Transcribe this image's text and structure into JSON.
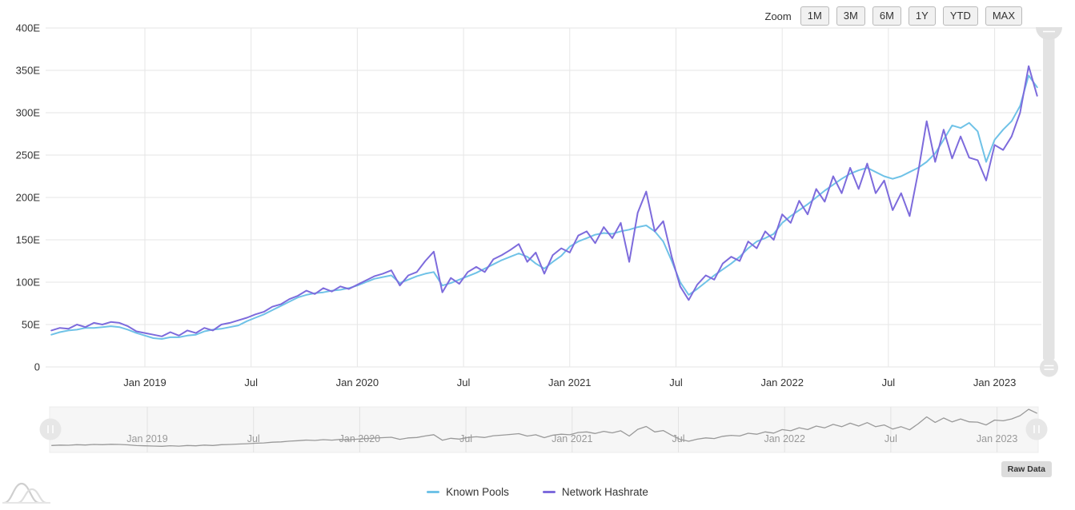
{
  "toolbar": {
    "zoom_label": "Zoom",
    "buttons": [
      "1M",
      "3M",
      "6M",
      "1Y",
      "YTD",
      "MAX"
    ]
  },
  "raw_data_label": "Raw Data",
  "colors": {
    "known_pools": "#6FC2E7",
    "network_hashrate": "#7D6BDC",
    "gridline": "#e6e6e6",
    "axis_label": "#333333",
    "navigator_label": "#999999",
    "navigator_line": "#999999",
    "navigator_bg": "#f6f6f6",
    "scrollbar": "#e3e3e3"
  },
  "chart_data": {
    "type": "line",
    "title": "",
    "xlabel": "",
    "ylabel": "",
    "ylim": [
      0,
      400
    ],
    "xlim": [
      2018.54,
      2023.22
    ],
    "grid": true,
    "legend_position": "bottom",
    "yticks": [
      {
        "v": 400,
        "label": "400E"
      },
      {
        "v": 350,
        "label": "350E"
      },
      {
        "v": 300,
        "label": "300E"
      },
      {
        "v": 250,
        "label": "250E"
      },
      {
        "v": 200,
        "label": "200E"
      },
      {
        "v": 150,
        "label": "150E"
      },
      {
        "v": 100,
        "label": "100E"
      },
      {
        "v": 50,
        "label": "50E"
      },
      {
        "v": 0,
        "label": "0"
      }
    ],
    "xticks": [
      {
        "t": 2019.0,
        "label": "Jan 2019"
      },
      {
        "t": 2019.5,
        "label": "Jul"
      },
      {
        "t": 2020.0,
        "label": "Jan 2020"
      },
      {
        "t": 2020.5,
        "label": "Jul"
      },
      {
        "t": 2021.0,
        "label": "Jan 2021"
      },
      {
        "t": 2021.5,
        "label": "Jul"
      },
      {
        "t": 2022.0,
        "label": "Jan 2022"
      },
      {
        "t": 2022.5,
        "label": "Jul"
      },
      {
        "t": 2023.0,
        "label": "Jan 2023"
      }
    ],
    "x_unit": "decimal_year",
    "y_unit": "EH/s",
    "x": [
      2018.56,
      2018.6,
      2018.64,
      2018.68,
      2018.72,
      2018.76,
      2018.8,
      2018.84,
      2018.88,
      2018.92,
      2018.96,
      2019.0,
      2019.04,
      2019.08,
      2019.12,
      2019.16,
      2019.2,
      2019.24,
      2019.28,
      2019.32,
      2019.36,
      2019.4,
      2019.44,
      2019.48,
      2019.52,
      2019.56,
      2019.6,
      2019.64,
      2019.68,
      2019.72,
      2019.76,
      2019.8,
      2019.84,
      2019.88,
      2019.92,
      2019.96,
      2020.0,
      2020.04,
      2020.08,
      2020.12,
      2020.16,
      2020.2,
      2020.24,
      2020.28,
      2020.32,
      2020.36,
      2020.4,
      2020.44,
      2020.48,
      2020.52,
      2020.56,
      2020.6,
      2020.64,
      2020.68,
      2020.72,
      2020.76,
      2020.8,
      2020.84,
      2020.88,
      2020.92,
      2020.96,
      2021.0,
      2021.04,
      2021.08,
      2021.12,
      2021.16,
      2021.2,
      2021.24,
      2021.28,
      2021.32,
      2021.36,
      2021.4,
      2021.44,
      2021.48,
      2021.52,
      2021.56,
      2021.6,
      2021.64,
      2021.68,
      2021.72,
      2021.76,
      2021.8,
      2021.84,
      2021.88,
      2021.92,
      2021.96,
      2022.0,
      2022.04,
      2022.08,
      2022.12,
      2022.16,
      2022.2,
      2022.24,
      2022.28,
      2022.32,
      2022.36,
      2022.4,
      2022.44,
      2022.48,
      2022.52,
      2022.56,
      2022.6,
      2022.64,
      2022.68,
      2022.72,
      2022.76,
      2022.8,
      2022.84,
      2022.88,
      2022.92,
      2022.96,
      2023.0,
      2023.04,
      2023.08,
      2023.12,
      2023.16,
      2023.2
    ],
    "series": [
      {
        "name": "Known Pools",
        "color": "#6FC2E7",
        "values": [
          38,
          41,
          43,
          44,
          46,
          46,
          47,
          48,
          47,
          44,
          40,
          37,
          34,
          33,
          35,
          35,
          37,
          38,
          42,
          44,
          45,
          47,
          49,
          54,
          58,
          62,
          67,
          72,
          77,
          82,
          85,
          87,
          88,
          90,
          91,
          93,
          96,
          100,
          104,
          106,
          108,
          99,
          103,
          107,
          110,
          112,
          96,
          99,
          103,
          107,
          111,
          116,
          121,
          126,
          130,
          134,
          130,
          122,
          116,
          124,
          131,
          142,
          148,
          152,
          156,
          158,
          157,
          160,
          162,
          165,
          167,
          160,
          148,
          125,
          100,
          85,
          92,
          100,
          108,
          115,
          122,
          130,
          140,
          148,
          152,
          157,
          170,
          178,
          185,
          192,
          200,
          208,
          215,
          222,
          228,
          232,
          235,
          230,
          225,
          222,
          225,
          230,
          235,
          242,
          252,
          268,
          285,
          282,
          288,
          278,
          242,
          268,
          280,
          290,
          308,
          344,
          330
        ]
      },
      {
        "name": "Network Hashrate",
        "color": "#7D6BDC",
        "values": [
          43,
          46,
          45,
          50,
          47,
          52,
          50,
          53,
          52,
          48,
          42,
          40,
          38,
          36,
          41,
          37,
          43,
          40,
          46,
          43,
          50,
          52,
          55,
          58,
          62,
          65,
          71,
          74,
          80,
          84,
          90,
          86,
          93,
          89,
          95,
          92,
          97,
          102,
          107,
          110,
          114,
          96,
          108,
          112,
          125,
          136,
          88,
          105,
          98,
          112,
          118,
          112,
          127,
          132,
          138,
          145,
          124,
          135,
          110,
          132,
          140,
          135,
          155,
          160,
          146,
          165,
          152,
          170,
          124,
          182,
          207,
          160,
          172,
          130,
          95,
          79,
          97,
          108,
          103,
          122,
          130,
          125,
          148,
          140,
          160,
          150,
          180,
          170,
          196,
          180,
          210,
          195,
          225,
          205,
          235,
          210,
          240,
          205,
          220,
          185,
          205,
          178,
          230,
          290,
          242,
          280,
          246,
          272,
          247,
          244,
          220,
          262,
          256,
          272,
          300,
          355,
          320
        ]
      }
    ],
    "navigator": {
      "series_source": "Network Hashrate",
      "xticks": [
        {
          "t": 2019.0,
          "label": "Jan 2019"
        },
        {
          "t": 2019.5,
          "label": "Jul"
        },
        {
          "t": 2020.0,
          "label": "Jan 2020"
        },
        {
          "t": 2020.5,
          "label": "Jul"
        },
        {
          "t": 2021.0,
          "label": "Jan 2021"
        },
        {
          "t": 2021.5,
          "label": "Jul"
        },
        {
          "t": 2022.0,
          "label": "Jan 2022"
        },
        {
          "t": 2022.5,
          "label": "Jul"
        },
        {
          "t": 2023.0,
          "label": "Jan 2023"
        }
      ]
    }
  }
}
